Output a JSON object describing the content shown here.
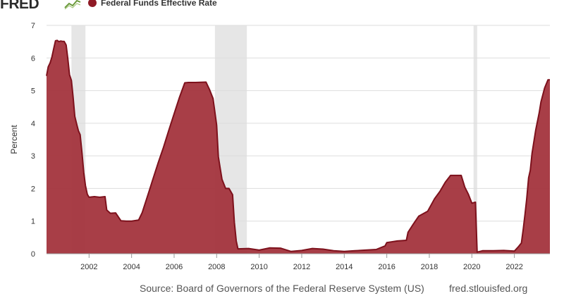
{
  "header": {
    "logo_text": "FRED",
    "logo_icon": "sparkline-icon",
    "legend_label": "Federal Funds Effective Rate"
  },
  "colors": {
    "series_line": "#7d111c",
    "series_fill": "#a3343d",
    "recession": "#e6e6e6",
    "grid": "#dddddd"
  },
  "footer": {
    "source": "Source: Board of Governors of the Federal Reserve System (US)",
    "url": "fred.stlouisfed.org"
  },
  "chart_data": {
    "type": "area",
    "title": "",
    "ylabel": "Percent",
    "xlabel": "",
    "xlim": [
      2000.0,
      2023.67
    ],
    "ylim": [
      0,
      7
    ],
    "y_ticks": [
      "0",
      "1",
      "2",
      "3",
      "4",
      "5",
      "6",
      "7"
    ],
    "x_ticks": [
      "2002",
      "2004",
      "2006",
      "2008",
      "2010",
      "2012",
      "2014",
      "2016",
      "2018",
      "2020",
      "2022"
    ],
    "grid": true,
    "recessions": [
      [
        2001.17,
        2001.83
      ],
      [
        2007.92,
        2009.42
      ],
      [
        2020.08,
        2020.25
      ]
    ],
    "series": [
      {
        "name": "Federal Funds Effective Rate",
        "x": [
          2000.0,
          2000.08,
          2000.17,
          2000.25,
          2000.33,
          2000.42,
          2000.5,
          2000.58,
          2000.67,
          2000.75,
          2000.83,
          2000.92,
          2001.0,
          2001.08,
          2001.17,
          2001.25,
          2001.33,
          2001.42,
          2001.5,
          2001.58,
          2001.67,
          2001.75,
          2001.83,
          2001.92,
          2002.0,
          2002.25,
          2002.5,
          2002.75,
          2002.83,
          2003.0,
          2003.25,
          2003.5,
          2003.75,
          2004.0,
          2004.33,
          2004.5,
          2004.67,
          2004.83,
          2005.0,
          2005.25,
          2005.5,
          2005.75,
          2006.0,
          2006.25,
          2006.5,
          2006.67,
          2007.0,
          2007.5,
          2007.67,
          2007.83,
          2008.0,
          2008.08,
          2008.17,
          2008.25,
          2008.42,
          2008.58,
          2008.75,
          2008.83,
          2008.92,
          2009.0,
          2009.5,
          2010.0,
          2010.5,
          2011.0,
          2011.5,
          2012.0,
          2012.5,
          2013.0,
          2013.5,
          2014.0,
          2014.5,
          2015.0,
          2015.5,
          2015.92,
          2016.0,
          2016.5,
          2016.92,
          2017.0,
          2017.25,
          2017.5,
          2017.92,
          2018.25,
          2018.5,
          2018.75,
          2019.0,
          2019.5,
          2019.67,
          2019.83,
          2020.0,
          2020.17,
          2020.25,
          2020.5,
          2021.0,
          2021.5,
          2022.0,
          2022.17,
          2022.33,
          2022.42,
          2022.5,
          2022.58,
          2022.67,
          2022.75,
          2022.83,
          2023.0,
          2023.17,
          2023.25,
          2023.42,
          2023.58,
          2023.67
        ],
        "values": [
          5.45,
          5.73,
          5.85,
          6.02,
          6.27,
          6.53,
          6.54,
          6.5,
          6.52,
          6.51,
          6.51,
          6.4,
          5.98,
          5.49,
          5.31,
          4.8,
          4.21,
          3.97,
          3.77,
          3.65,
          3.07,
          2.49,
          2.09,
          1.82,
          1.73,
          1.75,
          1.73,
          1.75,
          1.34,
          1.24,
          1.25,
          1.01,
          1.0,
          1.0,
          1.03,
          1.26,
          1.61,
          1.93,
          2.28,
          2.79,
          3.26,
          3.78,
          4.29,
          4.79,
          5.24,
          5.25,
          5.25,
          5.26,
          5.02,
          4.76,
          3.94,
          2.98,
          2.61,
          2.28,
          2.0,
          2.0,
          1.81,
          0.97,
          0.39,
          0.15,
          0.16,
          0.11,
          0.18,
          0.17,
          0.07,
          0.1,
          0.16,
          0.14,
          0.09,
          0.07,
          0.09,
          0.11,
          0.13,
          0.24,
          0.34,
          0.39,
          0.41,
          0.66,
          0.91,
          1.15,
          1.3,
          1.69,
          1.91,
          2.19,
          2.4,
          2.4,
          2.04,
          1.83,
          1.55,
          1.58,
          0.05,
          0.09,
          0.09,
          0.1,
          0.08,
          0.2,
          0.33,
          0.77,
          1.21,
          1.68,
          2.33,
          2.56,
          3.08,
          3.78,
          4.33,
          4.65,
          5.08,
          5.33,
          5.33
        ]
      }
    ]
  }
}
